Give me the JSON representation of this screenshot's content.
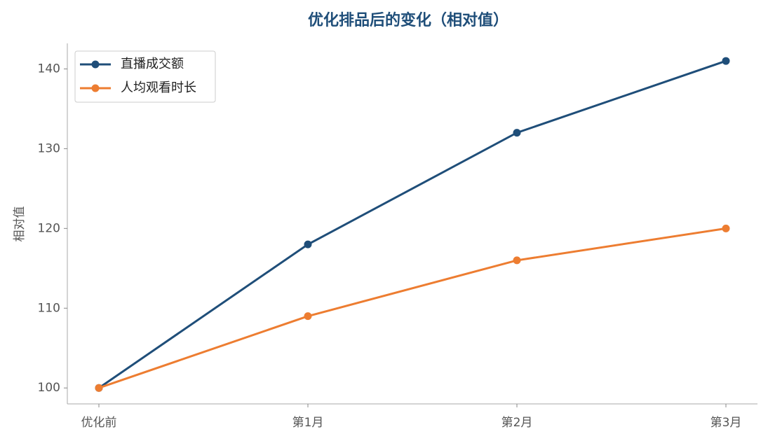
{
  "chart_data": {
    "type": "line",
    "title": "优化排品后的变化（相对值）",
    "y_label": "相对值",
    "categories": [
      "优化前",
      "第1月",
      "第2月",
      "第3月"
    ],
    "series": [
      {
        "name": "直播成交额",
        "color": "#1f4e79",
        "values": [
          100,
          118,
          132,
          141
        ]
      },
      {
        "name": "人均观看时长",
        "color": "#ed7d31",
        "values": [
          100,
          109,
          116,
          120
        ]
      }
    ],
    "ylim": [
      98,
      143.2
    ],
    "yticks": [
      100,
      110,
      120,
      130,
      140
    ],
    "legend": "upper left",
    "grid": false
  }
}
